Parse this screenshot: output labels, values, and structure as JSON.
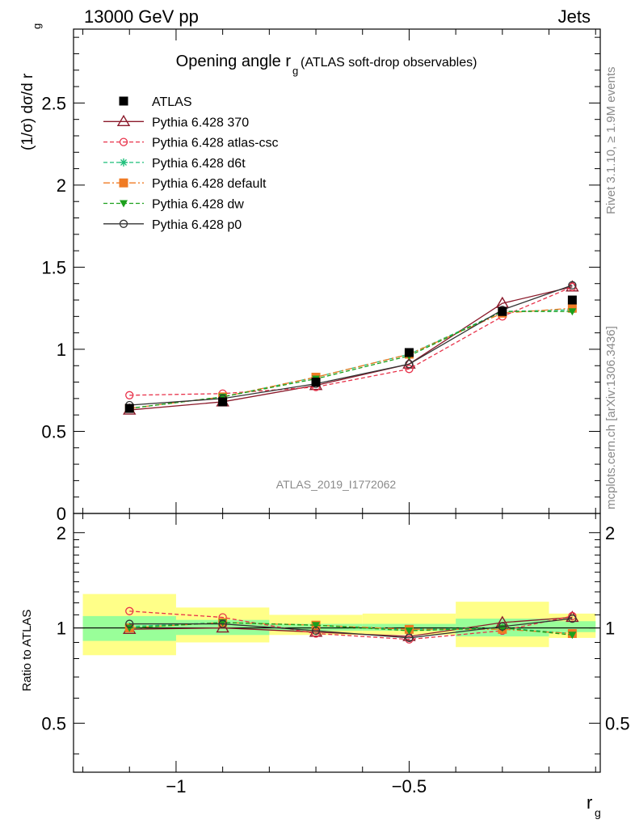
{
  "header": {
    "left": "13000 GeV pp",
    "right": "Jets"
  },
  "side": {
    "rivet": "Rivet 3.1.10, ≥ 1.9M events",
    "mcplots": "mcplots.cern.ch [arXiv:1306.3436]"
  },
  "chart_data": {
    "type": "line",
    "title_main": "Opening angle r",
    "title_sub": "g",
    "title_rest": "(ATLAS soft-drop observables)",
    "watermark": "ATLAS_2019_I1772062",
    "ylabel_top": "(1/σ) dσ/d r",
    "ylabel_top_sub": "g",
    "ylabel_bottom": "Ratio to ATLAS",
    "xlabel": "r",
    "xlabel_sub": "g",
    "xlim": [
      -1.22,
      -0.09
    ],
    "ylim_top": [
      0,
      2.95
    ],
    "ylim_bottom": [
      0.35,
      2.3
    ],
    "x_ticks_labels": [
      "−1",
      "−0.5"
    ],
    "y_ticks_top_labels": [
      "0",
      "0.5",
      "1",
      "1.5",
      "2",
      "2.5"
    ],
    "y_ticks_bottom_labels": [
      "0.5",
      "1",
      "2"
    ],
    "bin_edges": [
      -1.2,
      -1.0,
      -0.8,
      -0.6,
      -0.4,
      -0.2,
      -0.1
    ],
    "x": [
      -1.1,
      -0.9,
      -0.7,
      -0.5,
      -0.3,
      -0.15
    ],
    "atlas": [
      0.64,
      0.68,
      0.8,
      0.98,
      1.23,
      1.3
    ],
    "band_stat": [
      [
        0.91,
        1.09
      ],
      [
        0.95,
        1.06
      ],
      [
        0.98,
        1.03
      ],
      [
        0.98,
        1.03
      ],
      [
        0.94,
        1.07
      ],
      [
        0.97,
        1.05
      ]
    ],
    "band_total": [
      [
        0.82,
        1.28
      ],
      [
        0.9,
        1.16
      ],
      [
        0.95,
        1.1
      ],
      [
        0.95,
        1.11
      ],
      [
        0.87,
        1.21
      ],
      [
        0.93,
        1.11
      ]
    ],
    "series": [
      {
        "name": "ATLAS",
        "color": "#000000",
        "marker": "square-filled",
        "dash": "none",
        "values": [
          0.64,
          0.68,
          0.8,
          0.98,
          1.23,
          1.3
        ]
      },
      {
        "name": "Pythia 6.428 370",
        "color": "#8b1a2b",
        "marker": "triangle-open",
        "dash": "solid",
        "values": [
          0.63,
          0.68,
          0.78,
          0.91,
          1.28,
          1.38
        ],
        "ratio": [
          0.99,
          1.0,
          0.97,
          0.94,
          1.04,
          1.08
        ]
      },
      {
        "name": "Pythia 6.428 atlas-csc",
        "color": "#e8324a",
        "marker": "circle-open",
        "dash": "dashed",
        "values": [
          0.72,
          0.73,
          0.77,
          0.88,
          1.2,
          1.38
        ],
        "ratio": [
          1.13,
          1.08,
          0.96,
          0.92,
          0.98,
          1.09
        ]
      },
      {
        "name": "Pythia 6.428 d6t",
        "color": "#1dbf7a",
        "marker": "star",
        "dash": "dashed",
        "values": [
          0.64,
          0.71,
          0.83,
          0.97,
          1.23,
          1.24
        ],
        "ratio": [
          1.01,
          1.04,
          1.02,
          0.99,
          1.0,
          0.96
        ]
      },
      {
        "name": "Pythia 6.428 default",
        "color": "#f07b24",
        "marker": "square-filled",
        "dash": "dashdot",
        "values": [
          0.64,
          0.71,
          0.83,
          0.97,
          1.22,
          1.25
        ],
        "ratio": [
          1.0,
          1.04,
          1.02,
          0.99,
          0.99,
          0.96
        ]
      },
      {
        "name": "Pythia 6.428 dw",
        "color": "#1ca01c",
        "marker": "triangle-down-filled",
        "dash": "dashed",
        "values": [
          0.64,
          0.71,
          0.82,
          0.96,
          1.23,
          1.23
        ],
        "ratio": [
          1.0,
          1.04,
          1.02,
          0.98,
          1.0,
          0.95
        ]
      },
      {
        "name": "Pythia 6.428 p0",
        "color": "#333333",
        "marker": "circle-open",
        "dash": "solid",
        "values": [
          0.66,
          0.7,
          0.79,
          0.91,
          1.24,
          1.39
        ],
        "ratio": [
          1.03,
          1.03,
          0.98,
          0.93,
          1.01,
          1.07
        ]
      }
    ]
  }
}
